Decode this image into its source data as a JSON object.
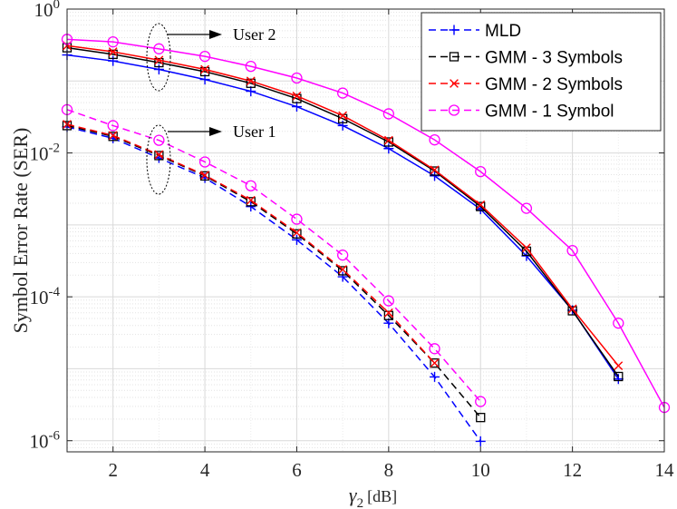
{
  "chart_data": {
    "type": "line",
    "y_scale": "log",
    "xlabel": "γ2 [dB]",
    "xlabel_main": "γ",
    "xlabel_sub": "2",
    "xlabel_unit": "[dB]",
    "ylabel": "Symbol Error Rate (SER)",
    "xlim": [
      1,
      14
    ],
    "ylim": [
      7e-07,
      1
    ],
    "xticks": [
      2,
      4,
      6,
      8,
      10,
      12,
      14
    ],
    "yticks": [
      {
        "value": 1,
        "base": "10",
        "exp": "0"
      },
      {
        "value": 0.01,
        "base": "10",
        "exp": "-2"
      },
      {
        "value": 0.0001,
        "base": "10",
        "exp": "-4"
      },
      {
        "value": 1e-06,
        "base": "10",
        "exp": "-6"
      }
    ],
    "grid": true,
    "legend_position": "top-right",
    "series": [
      {
        "name": "MLD",
        "color": "#0000ff",
        "marker": "plus",
        "group": "user2",
        "x": [
          1,
          2,
          3,
          4,
          5,
          6,
          7,
          8,
          9,
          10,
          11,
          12,
          13
        ],
        "y": [
          0.23,
          0.19,
          0.145,
          0.105,
          0.072,
          0.044,
          0.024,
          0.0115,
          0.0048,
          0.00165,
          0.00037,
          6.5e-05,
          7.2e-06
        ]
      },
      {
        "name": "GMM - 3 Symbols",
        "color": "#000000",
        "marker": "square",
        "group": "user2",
        "x": [
          1,
          2,
          3,
          4,
          5,
          6,
          7,
          8,
          9,
          10,
          11,
          12,
          13
        ],
        "y": [
          0.29,
          0.235,
          0.18,
          0.135,
          0.093,
          0.057,
          0.03,
          0.0142,
          0.0056,
          0.0018,
          0.00043,
          6.4e-05,
          7.8e-06
        ]
      },
      {
        "name": "GMM - 2 Symbols",
        "color": "#ff0000",
        "marker": "x",
        "group": "user2",
        "x": [
          1,
          2,
          3,
          4,
          5,
          6,
          7,
          8,
          9,
          10,
          11,
          12,
          13
        ],
        "y": [
          0.31,
          0.255,
          0.195,
          0.145,
          0.1,
          0.062,
          0.033,
          0.015,
          0.0058,
          0.0019,
          0.00048,
          6.8e-05,
          1.1e-05
        ]
      },
      {
        "name": "GMM - 1 Symbol",
        "color": "#ff00ff",
        "marker": "circle",
        "group": "user2",
        "x": [
          1,
          2,
          3,
          4,
          5,
          6,
          7,
          8,
          9,
          10,
          11,
          12,
          13,
          14
        ],
        "y": [
          0.38,
          0.35,
          0.28,
          0.22,
          0.16,
          0.11,
          0.068,
          0.035,
          0.0152,
          0.0055,
          0.0017,
          0.00044,
          4.3e-05,
          2.9e-06
        ]
      },
      {
        "name": "MLD",
        "color": "#0000ff",
        "marker": "plus",
        "group": "user1",
        "x": [
          1,
          2,
          3,
          4,
          5,
          6,
          7,
          8,
          9,
          10
        ],
        "y": [
          0.023,
          0.016,
          0.0085,
          0.0045,
          0.0018,
          0.00062,
          0.00019,
          4.3e-05,
          7.7e-06,
          9.8e-07
        ]
      },
      {
        "name": "GMM - 3 Symbols",
        "color": "#000000",
        "marker": "square",
        "group": "user1",
        "x": [
          1,
          2,
          3,
          4,
          5,
          6,
          7,
          8,
          9,
          10
        ],
        "y": [
          0.024,
          0.017,
          0.0092,
          0.0048,
          0.0021,
          0.00075,
          0.00023,
          5.5e-05,
          1.2e-05,
          2.1e-06
        ]
      },
      {
        "name": "GMM - 2 Symbols",
        "color": "#ff0000",
        "marker": "x",
        "group": "user1",
        "x": [
          1,
          2,
          3,
          4,
          5,
          6,
          7,
          8,
          9
        ],
        "y": [
          0.025,
          0.0175,
          0.0095,
          0.0049,
          0.0022,
          0.00078,
          0.00024,
          6e-05,
          1.2e-05
        ]
      },
      {
        "name": "GMM - 1 Symbol",
        "color": "#ff00ff",
        "marker": "circle",
        "group": "user1",
        "x": [
          1,
          2,
          3,
          4,
          5,
          6,
          7,
          8,
          9,
          10
        ],
        "y": [
          0.04,
          0.024,
          0.015,
          0.0075,
          0.0035,
          0.0012,
          0.00038,
          8.8e-05,
          1.9e-05,
          3.5e-06
        ]
      }
    ],
    "legend": [
      {
        "label": "MLD",
        "color": "#0000ff",
        "marker": "plus"
      },
      {
        "label": "GMM - 3 Symbols",
        "color": "#000000",
        "marker": "square"
      },
      {
        "label": "GMM - 2 Symbols",
        "color": "#ff0000",
        "marker": "x"
      },
      {
        "label": "GMM - 1 Symbol",
        "color": "#ff00ff",
        "marker": "circle"
      }
    ],
    "annotations": [
      {
        "text": "User 2",
        "group": "user2"
      },
      {
        "text": "User 1",
        "group": "user1"
      }
    ]
  }
}
